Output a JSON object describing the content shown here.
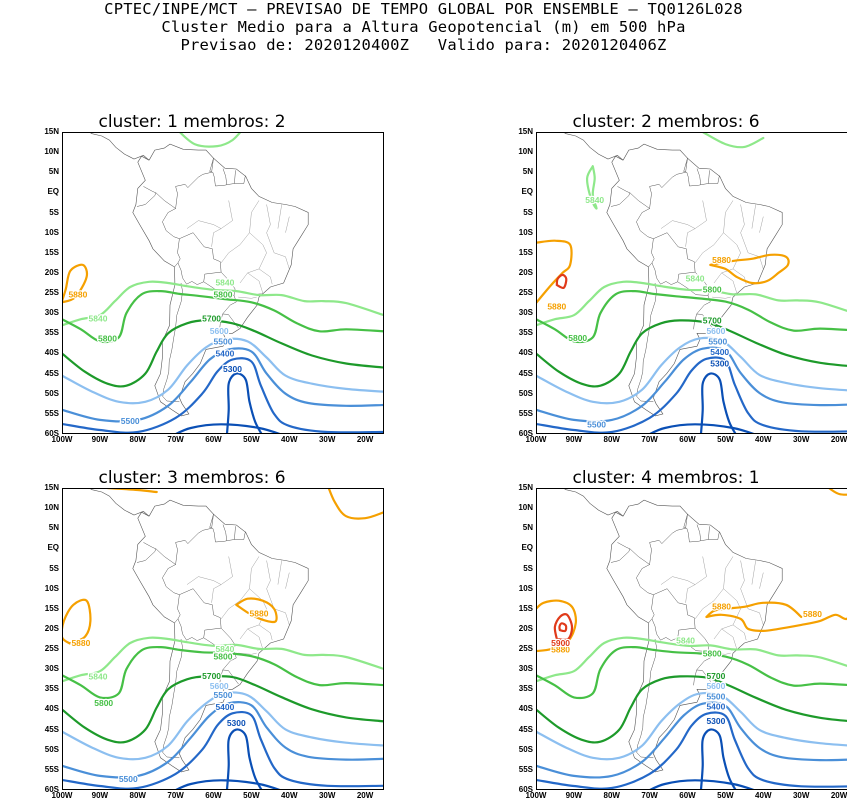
{
  "header": {
    "line1": "CPTEC/INPE/MCT – PREVISAO DE TEMPO GLOBAL POR ENSEMBLE – TQ0126L028",
    "line2": "Cluster Medio para a Altura Geopotencial (m) em 500 hPa",
    "line3": "Previsao de: 2020120400Z   Valido para: 2020120406Z"
  },
  "axes": {
    "lat_labels": [
      "15N",
      "10N",
      "5N",
      "EQ",
      "5S",
      "10S",
      "15S",
      "20S",
      "25S",
      "30S",
      "35S",
      "40S",
      "45S",
      "50S",
      "55S",
      "60S"
    ],
    "lon_labels": [
      "100W",
      "90W",
      "80W",
      "70W",
      "60W",
      "50W",
      "40W",
      "30W",
      "20W"
    ]
  },
  "colors": {
    "c5300": "#0a4fb5",
    "c5400": "#2468c8",
    "c5500": "#4a8fd8",
    "c5600": "#8cbff0",
    "c5700": "#1d9a2a",
    "c5800": "#46c046",
    "c5840": "#8ee88a",
    "c5880": "#f5a000",
    "c5900": "#e03a1a",
    "land": "#555555"
  },
  "panels": [
    {
      "title": "cluster: 1   membros: 2",
      "labels": {
        "l5300": "5300",
        "l5400": "5400",
        "l5500a": "5500",
        "l5500b": "5500",
        "l5600": "5600",
        "l5700": "5700",
        "l5800a": "5800",
        "l5800b": "5800",
        "l5840a": "5840",
        "l5840b": "5840",
        "l5880a": "5880"
      }
    },
    {
      "title": "cluster: 2   membros: 6",
      "labels": {
        "l5300": "5300",
        "l5400": "5400",
        "l5500a": "5500",
        "l5500b": "5500",
        "l5600": "5600",
        "l5700": "5700",
        "l5800a": "5800",
        "l5800b": "5800",
        "l5840a": "5840",
        "l5840b": "5840",
        "l5880a": "5880",
        "l5880b": "5880"
      }
    },
    {
      "title": "cluster: 3   membros: 6",
      "labels": {
        "l5300": "5300",
        "l5400": "5400",
        "l5500a": "5500",
        "l5500b": "5500",
        "l5600": "5600",
        "l5700": "5700",
        "l5800a": "5800",
        "l5800b": "5800",
        "l5840a": "5840",
        "l5840b": "5840",
        "l5880a": "5880",
        "l5880b": "5880"
      }
    },
    {
      "title": "cluster: 4   membros: 1",
      "labels": {
        "l5300": "5300",
        "l5400": "5400",
        "l5500": "5500",
        "l5600": "5600",
        "l5700": "5700",
        "l5800": "5800",
        "l5840": "5840",
        "l5880a": "5880",
        "l5880b": "5880",
        "l5880c": "5880",
        "l5900": "5900"
      }
    }
  ]
}
